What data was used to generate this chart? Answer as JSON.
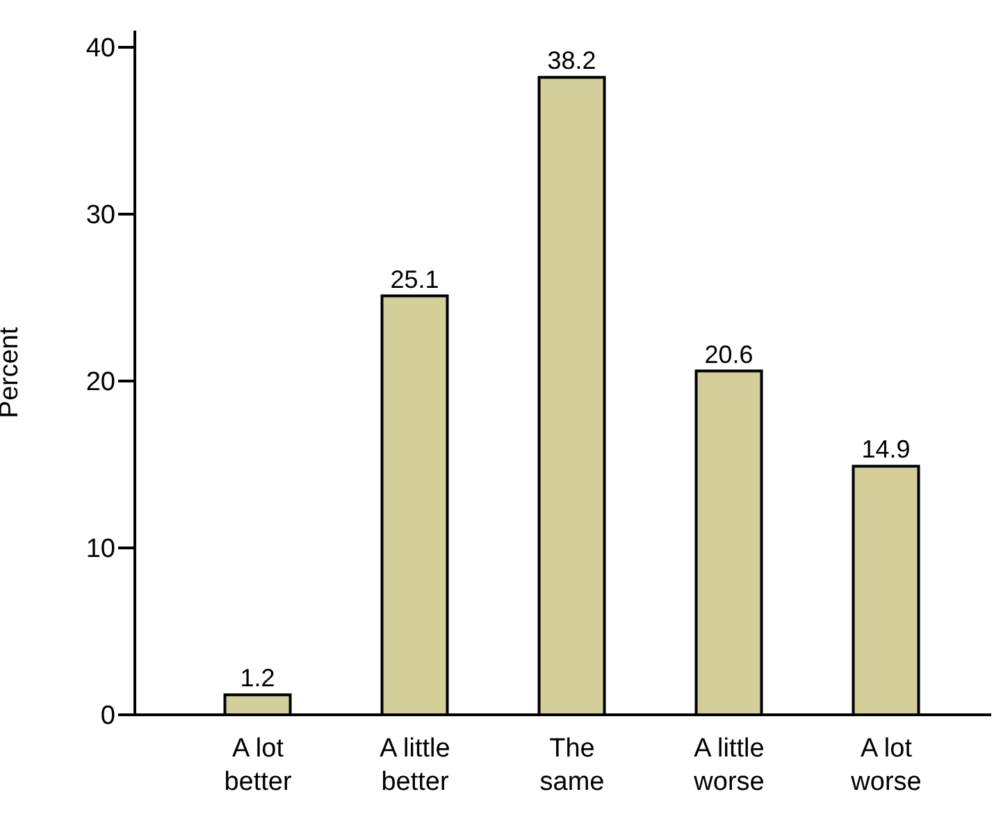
{
  "chart_data": {
    "type": "bar",
    "ylabel": "Percent",
    "categories": [
      "A lot better",
      "A little better",
      "The same",
      "A little worse",
      "A lot worse"
    ],
    "values": [
      1.2,
      25.1,
      38.2,
      20.6,
      14.9
    ],
    "color": "#d4cf9a",
    "ylim": [
      0,
      41
    ],
    "yticks": [
      0,
      10,
      20,
      30,
      40
    ],
    "data_labels": true,
    "grid": false,
    "legend": false
  }
}
